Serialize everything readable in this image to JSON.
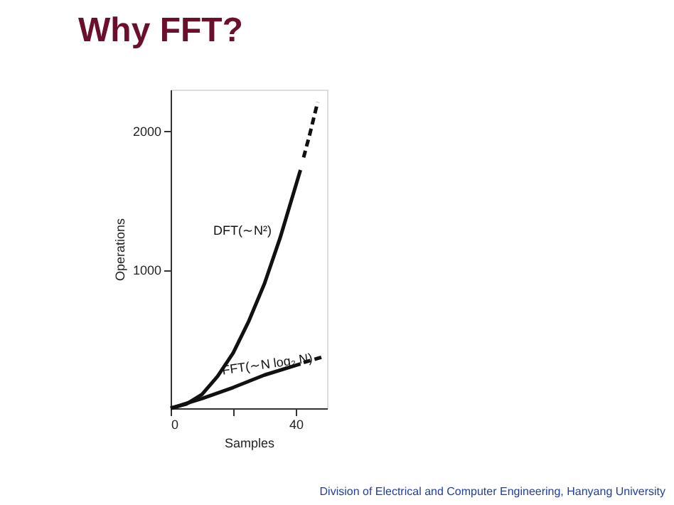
{
  "chart_data": {
    "type": "line",
    "title": "Why FFT?",
    "xlabel": "Samples",
    "ylabel": "Operations",
    "xlim": [
      0,
      50
    ],
    "ylim": [
      0,
      2300
    ],
    "xticks": [
      0,
      {
        "value": 20,
        "label": null
      },
      40
    ],
    "yticks": [
      1000,
      2000
    ],
    "grid": false,
    "marker": "none",
    "series": [
      {
        "name": "DFT(∼N²)",
        "color": "#111111",
        "line_style": "solid",
        "x": [
          0,
          5,
          10,
          15,
          20,
          25,
          30,
          35,
          41.5
        ],
        "values": [
          0,
          30,
          100,
          230,
          400,
          630,
          900,
          1230,
          1720
        ]
      },
      {
        "color": "#111111",
        "line_style": "dashed",
        "x": [
          42.5,
          44.5,
          47
        ],
        "values": [
          1810,
          1980,
          2210
        ]
      },
      {
        "name": "FFT(∼N log₂ N)",
        "color": "#111111",
        "line_style": "solid",
        "x": [
          0,
          10,
          20,
          30,
          41.5
        ],
        "values": [
          0,
          70,
          150,
          240,
          320
        ]
      },
      {
        "color": "#111111",
        "line_style": "dashed",
        "x": [
          42.5,
          48.5
        ],
        "values": [
          330,
          370
        ]
      }
    ],
    "annotations": [
      "Division of Electrical and Computer Engineering, Hanyang University"
    ]
  }
}
